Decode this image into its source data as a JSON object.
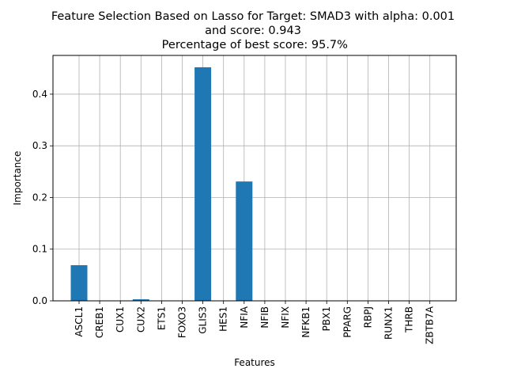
{
  "chart_data": {
    "type": "bar",
    "title_lines": [
      "Feature Selection Based on Lasso for Target: SMAD3 with alpha: 0.001",
      "and score: 0.943",
      " Percentage of best score: 95.7%"
    ],
    "xlabel": "Features",
    "ylabel": "Importance",
    "categories": [
      "ASCL1",
      "CREB1",
      "CUX1",
      "CUX2",
      "ETS1",
      "FOXO3",
      "GLIS3",
      "HES1",
      "NFIA",
      "NFIB",
      "NFIX",
      "NFKB1",
      "PBX1",
      "PPARG",
      "RBPJ",
      "RUNX1",
      "THRB",
      "ZBTB7A"
    ],
    "values": [
      0.069,
      0.0,
      0.0,
      0.003,
      0.0,
      0.0,
      0.452,
      0.0,
      0.231,
      0.0,
      0.0,
      0.0,
      0.0,
      0.0,
      0.0,
      0.0,
      0.0,
      0.0
    ],
    "yticks": [
      "0.0",
      "0.1",
      "0.2",
      "0.3",
      "0.4"
    ],
    "ylim": [
      0,
      0.475
    ],
    "grid": true,
    "bar_color": "#1f77b4",
    "grid_color": "#b0b0b0"
  }
}
